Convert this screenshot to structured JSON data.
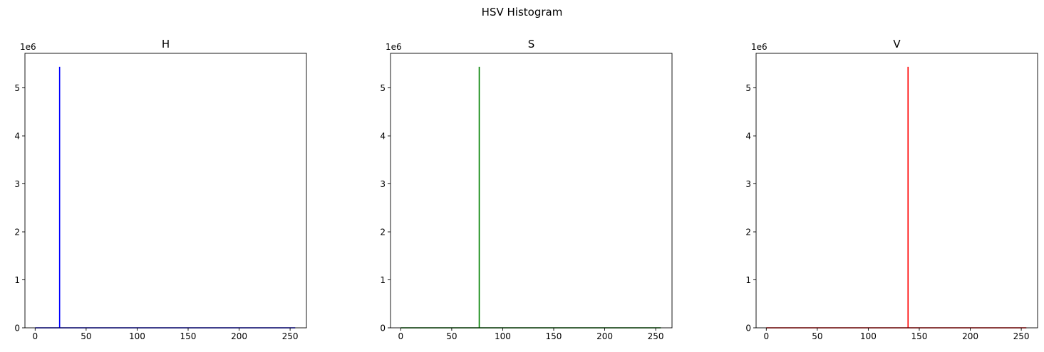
{
  "figure": {
    "suptitle": "HSV Histogram"
  },
  "chart_data": [
    {
      "type": "line",
      "title": "H",
      "color": "#0000ff",
      "xlabel": "",
      "ylabel": "",
      "offset_label": "1e6",
      "xlim": [
        -10,
        266
      ],
      "ylim": [
        0,
        5.72
      ],
      "xticks": [
        0,
        50,
        100,
        150,
        200,
        250
      ],
      "yticks": [
        0,
        1,
        2,
        3,
        4,
        5
      ],
      "series": [
        {
          "x": [
            0,
            23,
            24,
            24,
            24,
            25,
            255
          ],
          "y": [
            0,
            0,
            0,
            5.44,
            0,
            0,
            0
          ]
        }
      ]
    },
    {
      "type": "line",
      "title": "S",
      "color": "#008000",
      "xlabel": "",
      "ylabel": "",
      "offset_label": "1e6",
      "xlim": [
        -10,
        266
      ],
      "ylim": [
        0,
        5.72
      ],
      "xticks": [
        0,
        50,
        100,
        150,
        200,
        250
      ],
      "yticks": [
        0,
        1,
        2,
        3,
        4,
        5
      ],
      "series": [
        {
          "x": [
            0,
            76,
            77,
            77,
            77,
            78,
            255
          ],
          "y": [
            0,
            0,
            0,
            5.44,
            0,
            0,
            0
          ]
        }
      ]
    },
    {
      "type": "line",
      "title": "V",
      "color": "#ff0000",
      "xlabel": "",
      "ylabel": "",
      "offset_label": "1e6",
      "xlim": [
        -10,
        266
      ],
      "ylim": [
        0,
        5.72
      ],
      "xticks": [
        0,
        50,
        100,
        150,
        200,
        250
      ],
      "yticks": [
        0,
        1,
        2,
        3,
        4,
        5
      ],
      "series": [
        {
          "x": [
            0,
            138,
            139,
            139,
            139,
            140,
            255
          ],
          "y": [
            0,
            0,
            0,
            5.44,
            0,
            0,
            0
          ]
        }
      ]
    }
  ]
}
